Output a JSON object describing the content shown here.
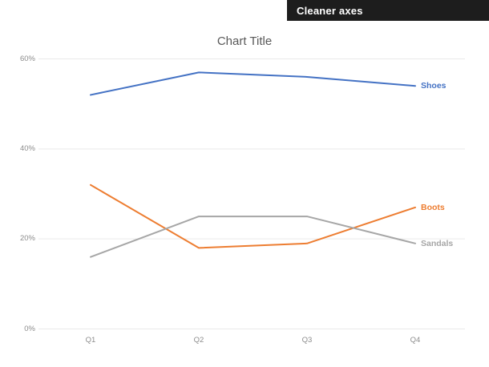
{
  "banner": {
    "label": "Cleaner axes",
    "bg_color": "#1d1d1d",
    "text_color": "#ffffff"
  },
  "chart_data": {
    "type": "line",
    "title": "Chart Title",
    "categories": [
      "Q1",
      "Q2",
      "Q3",
      "Q4"
    ],
    "series": [
      {
        "name": "Shoes",
        "values": [
          52,
          57,
          56,
          54
        ],
        "color": "#4472c4"
      },
      {
        "name": "Boots",
        "values": [
          32,
          18,
          19,
          27
        ],
        "color": "#ed7d31"
      },
      {
        "name": "Sandals",
        "values": [
          16,
          25,
          25,
          19
        ],
        "color": "#a6a6a6"
      }
    ],
    "y_axis": {
      "tick_labels": [
        "0%",
        "20%",
        "40%",
        "60%"
      ],
      "tick_values": [
        0,
        20,
        40,
        60
      ],
      "min": 0,
      "max": 60
    },
    "grid": "horizontal only",
    "legend_position": "direct end-of-line labels",
    "xlabel": "",
    "ylabel": "",
    "title_color": "#595959",
    "axis_label_color": "#8c8c8c",
    "gridline_color": "#e9e9e9"
  }
}
